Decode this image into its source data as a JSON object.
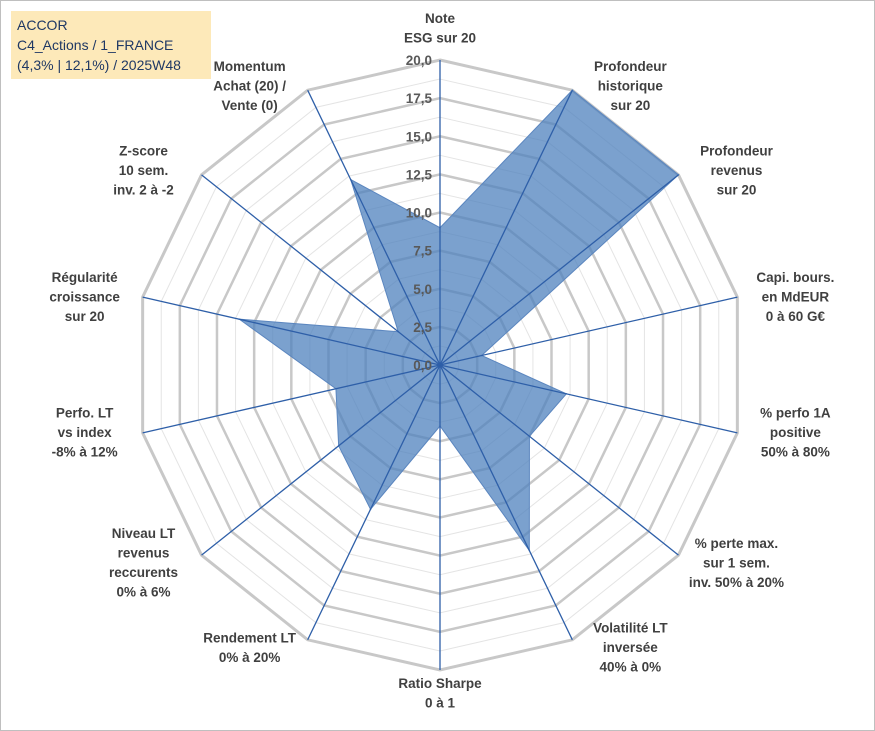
{
  "title": {
    "line1": "ACCOR",
    "line2": "C4_Actions / 1_FRANCE",
    "line3": "(4,3% | 12,1%) / 2025W48"
  },
  "chart_data": {
    "type": "radar",
    "rmin": 0,
    "rmax": 20,
    "tick_step": 2.5,
    "minor_step": 1.25,
    "tick_labels": [
      "0,0",
      "2,5",
      "5,0",
      "7,5",
      "10,0",
      "12,5",
      "15,0",
      "17,5",
      "20,0"
    ],
    "categories": [
      [
        "Note",
        "ESG sur 20"
      ],
      [
        "Profondeur",
        "historique",
        "sur 20"
      ],
      [
        "Profondeur",
        "revenus",
        "sur 20"
      ],
      [
        "Capi. bours.",
        "en MdEUR",
        "0 à 60 G€"
      ],
      [
        "% perfo 1A",
        "positive",
        "50% à 80%"
      ],
      [
        "% perte max.",
        "sur 1 sem.",
        "inv. 50% à 20%"
      ],
      [
        "Volatilité LT",
        "inversée",
        "40% à 0%"
      ],
      [
        "Ratio Sharpe",
        "0 à 1"
      ],
      [
        "Rendement LT",
        "0% à 20%"
      ],
      [
        "Niveau LT",
        "revenus",
        "reccurents",
        "0% à 6%"
      ],
      [
        "Perfo. LT",
        "vs index",
        "-8% à 12%"
      ],
      [
        "Régularité",
        "croissance",
        "sur 20"
      ],
      [
        "Z-score",
        "10 sem.",
        "inv. 2 à -2"
      ],
      [
        "Momentum",
        "Achat (20) /",
        "Vente (0)"
      ]
    ],
    "values": [
      9.0,
      20.0,
      20.0,
      2.8,
      8.5,
      7.5,
      13.5,
      4.0,
      10.5,
      8.5,
      7.0,
      13.5,
      3.5,
      13.5
    ],
    "colors": {
      "fill": "#4f81bd",
      "fill_opacity": 0.75,
      "axis": "#2e5fa8",
      "grid_major": "#c8c8c8",
      "grid_minor": "#e4e4e4"
    }
  }
}
